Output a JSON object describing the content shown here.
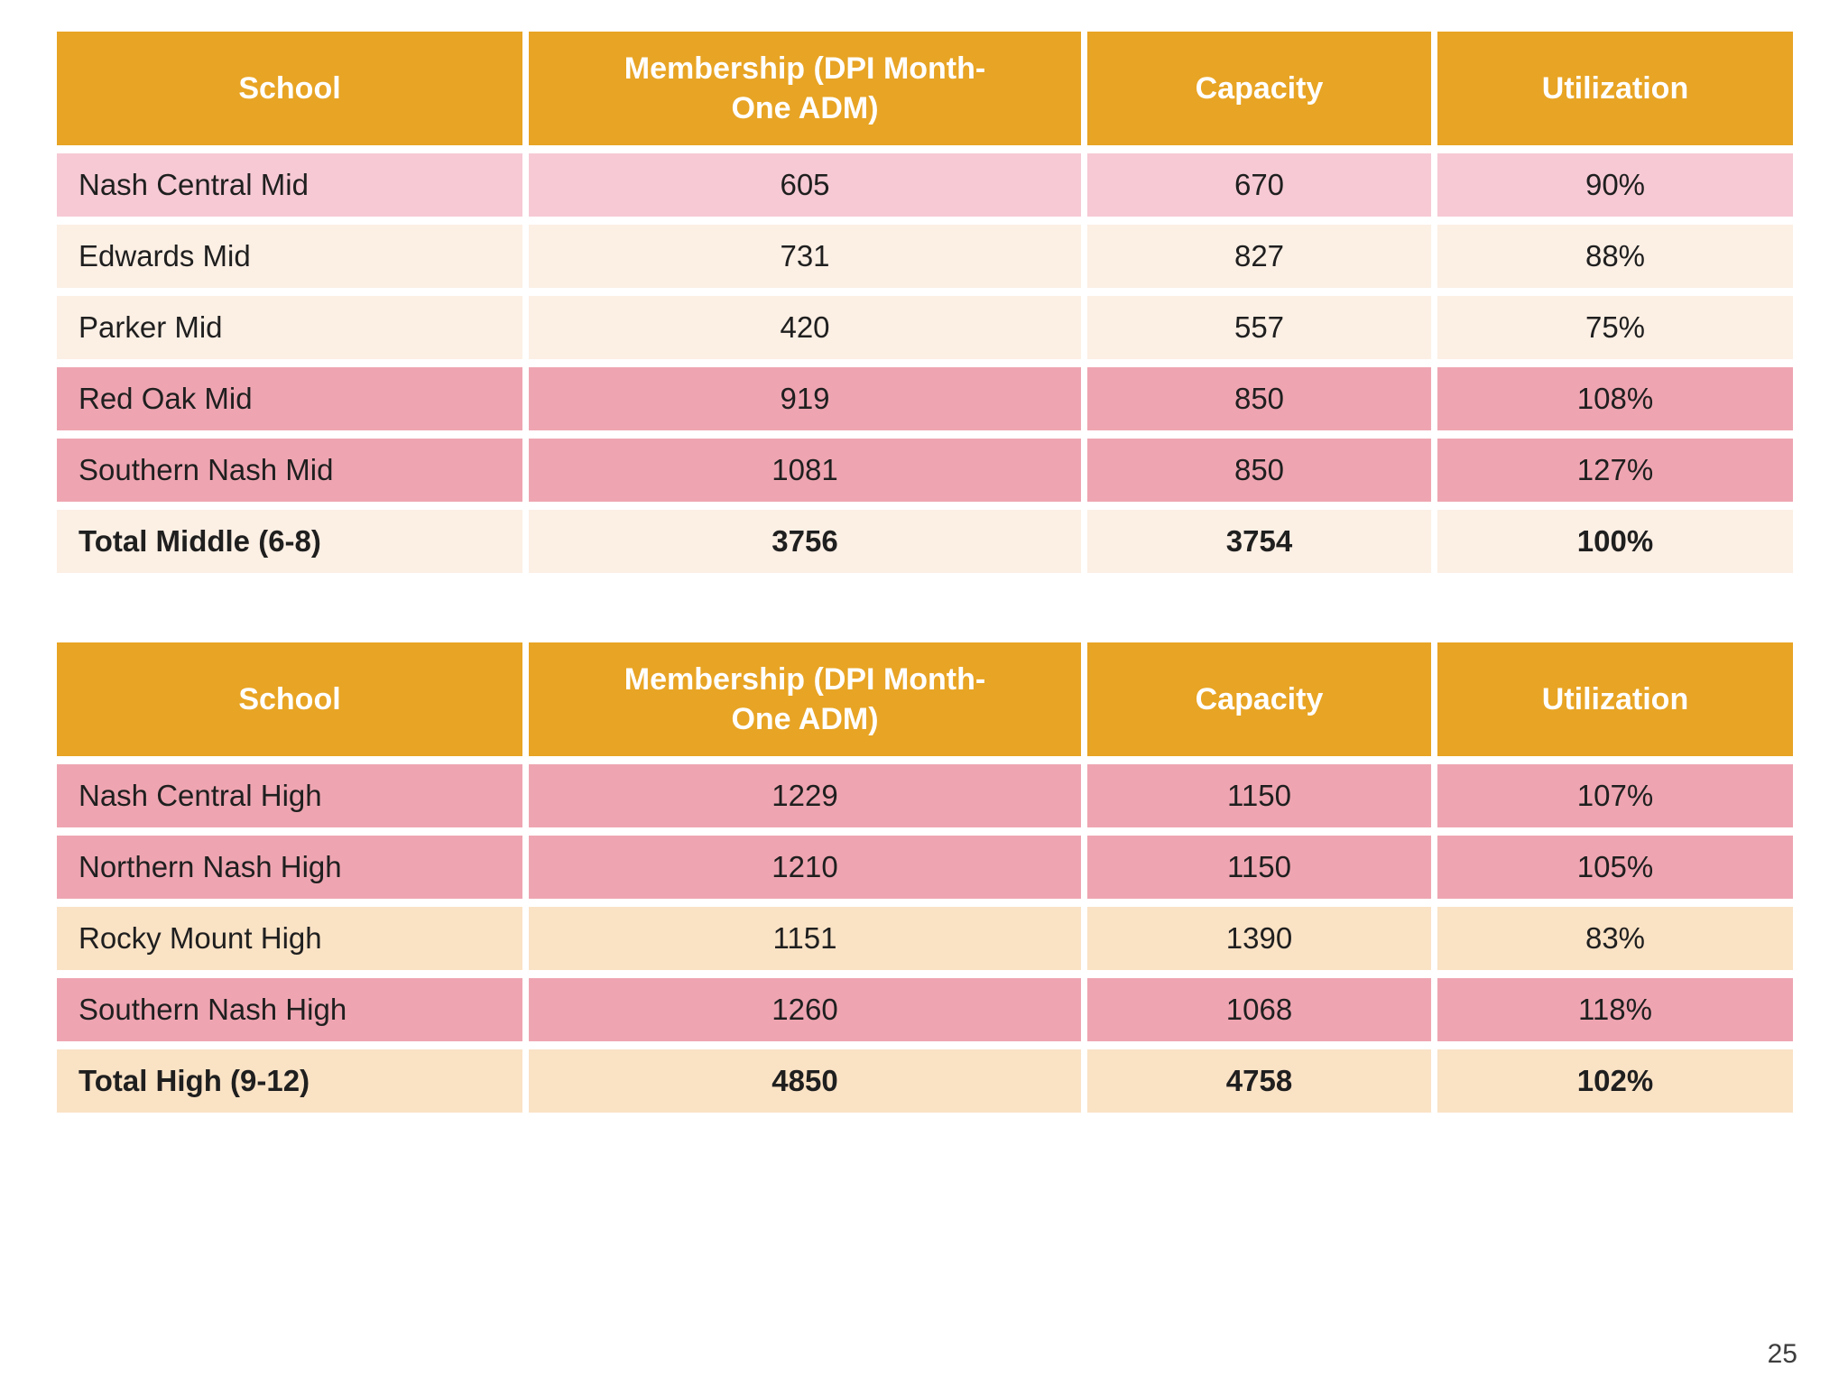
{
  "page": {
    "number": "25"
  },
  "colors": {
    "header_gold": "#e8a424",
    "header_text": "#ffffff",
    "row_light_pink": "#f6c9d4",
    "row_cream": "#fcefe4",
    "row_dark_pink": "#eea5b1",
    "row_peach": "#fae2c5",
    "cell_text": "#1f1f1f",
    "page_number_text": "#3d3d3d"
  },
  "tables": [
    {
      "name": "middle-schools",
      "columns": [
        "School",
        "Membership (DPI Month-\nOne ADM)",
        "Capacity",
        "Utilization"
      ],
      "column_keys": [
        "school",
        "membership",
        "capacity",
        "utilization"
      ],
      "rows": [
        {
          "school": "Nash Central Mid",
          "membership": "605",
          "capacity": "670",
          "utilization": "90%",
          "tone": "light-pink",
          "bold": false
        },
        {
          "school": "Edwards Mid",
          "membership": "731",
          "capacity": "827",
          "utilization": "88%",
          "tone": "cream",
          "bold": false
        },
        {
          "school": "Parker Mid",
          "membership": "420",
          "capacity": "557",
          "utilization": "75%",
          "tone": "cream",
          "bold": false
        },
        {
          "school": "Red Oak Mid",
          "membership": "919",
          "capacity": "850",
          "utilization": "108%",
          "tone": "dark-pink",
          "bold": false
        },
        {
          "school": "Southern Nash Mid",
          "membership": "1081",
          "capacity": "850",
          "utilization": "127%",
          "tone": "dark-pink",
          "bold": false
        },
        {
          "school": "Total Middle (6-8)",
          "membership": "3756",
          "capacity": "3754",
          "utilization": "100%",
          "tone": "cream",
          "bold": true
        }
      ]
    },
    {
      "name": "high-schools",
      "columns": [
        "School",
        "Membership (DPI Month-\nOne ADM)",
        "Capacity",
        "Utilization"
      ],
      "column_keys": [
        "school",
        "membership",
        "capacity",
        "utilization"
      ],
      "rows": [
        {
          "school": "Nash Central High",
          "membership": "1229",
          "capacity": "1150",
          "utilization": "107%",
          "tone": "dark-pink",
          "bold": false
        },
        {
          "school": "Northern Nash High",
          "membership": "1210",
          "capacity": "1150",
          "utilization": "105%",
          "tone": "dark-pink",
          "bold": false
        },
        {
          "school": "Rocky Mount High",
          "membership": "1151",
          "capacity": "1390",
          "utilization": "83%",
          "tone": "peach",
          "bold": false
        },
        {
          "school": "Southern Nash High",
          "membership": "1260",
          "capacity": "1068",
          "utilization": "118%",
          "tone": "dark-pink",
          "bold": false
        },
        {
          "school": "Total High (9-12)",
          "membership": "4850",
          "capacity": "4758",
          "utilization": "102%",
          "tone": "peach",
          "bold": true
        }
      ]
    }
  ]
}
